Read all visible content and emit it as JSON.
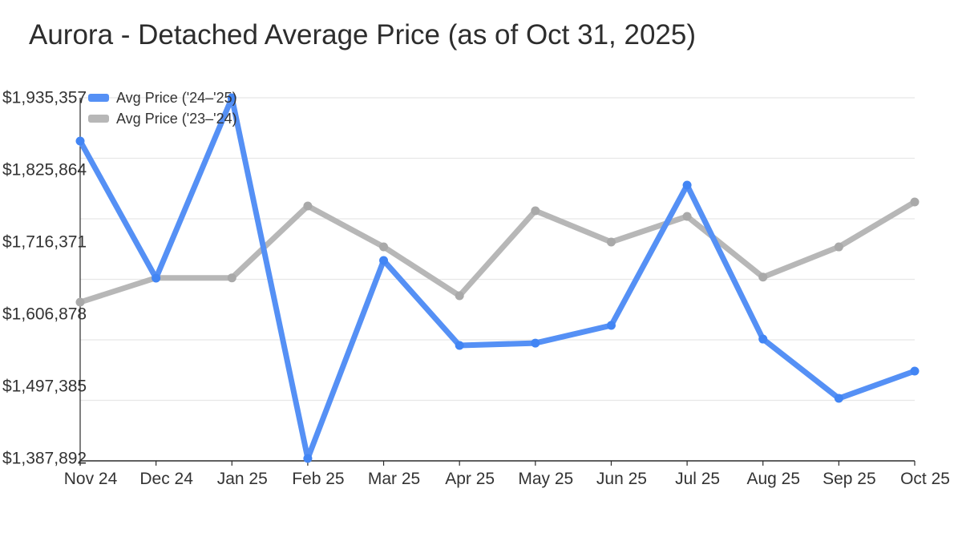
{
  "title": "Aurora - Detached Average Price (as of Oct 31, 2025)",
  "colors": {
    "series1_line": "#5590f5",
    "series1_marker": "#4285f4",
    "series2_line": "#b7b7b7",
    "series2_marker": "#a9a9a9",
    "gridline": "#e7e7e7",
    "axis": "#2b2b2b",
    "label_text": "#333333",
    "title_text": "#2d2d2d"
  },
  "chart_data": {
    "type": "line",
    "title": "Aurora - Detached Average Price (as of Oct 31, 2025)",
    "xlabel": "",
    "ylabel": "",
    "grid": "horizontal",
    "legend_position": "top-left-inside",
    "categories": [
      "Nov 24",
      "Dec 24",
      "Jan 25",
      "Feb 25",
      "Mar 25",
      "Apr 25",
      "May 25",
      "Jun 25",
      "Jul 25",
      "Aug 25",
      "Sep 25",
      "Oct 25"
    ],
    "series": [
      {
        "name": "Avg Price ('24–'25)",
        "color": "#5590f5",
        "marker_color": "#4285f4",
        "values": [
          1869700,
          1661600,
          1935357,
          1387892,
          1688400,
          1559400,
          1563000,
          1589800,
          1802700,
          1569100,
          1479100,
          1520500
        ]
      },
      {
        "name": "Avg Price ('23–'24)",
        "color": "#b7b7b7",
        "marker_color": "#a9a9a9",
        "values": [
          1625100,
          1662000,
          1662000,
          1771100,
          1709100,
          1634900,
          1763800,
          1716400,
          1755300,
          1663200,
          1709000,
          1777200
        ]
      }
    ],
    "ylim": [
      1387892,
      1935357
    ],
    "y_ticks": {
      "values": [
        1935357,
        1825864,
        1716371,
        1606878,
        1497385,
        1387892
      ],
      "labels": [
        "$1,935,357",
        "$1,825,864",
        "$1,716,371",
        "$1,606,878",
        "$1,497,385",
        "$1,387,892"
      ]
    }
  }
}
